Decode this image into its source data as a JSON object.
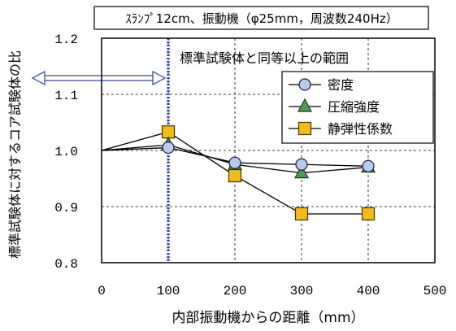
{
  "chart_data": {
    "type": "line",
    "title": "ｽﾗﾝﾌﾟ12cm、振動機（φ25mm，周波数240Hz）",
    "xlabel": "内部振動機からの距離（mm）",
    "ylabel": "標準試験体に対するコア試験体の比",
    "xlim": [
      0,
      500
    ],
    "ylim": [
      0.8,
      1.2
    ],
    "x_ticks": [
      "0",
      "100",
      "200",
      "300",
      "400",
      "500"
    ],
    "y_ticks": [
      "0.8",
      "0.9",
      "1.0",
      "1.1",
      "1.2"
    ],
    "x_tick_values": [
      0,
      100,
      200,
      300,
      400,
      500
    ],
    "y_tick_values": [
      0.8,
      0.9,
      1.0,
      1.1,
      1.2
    ],
    "grid": "dashed",
    "legend_position": "right",
    "reference_line": {
      "x": 100,
      "label": "標準試験体と同等以上の範囲",
      "color": "#3a48b8"
    },
    "series": [
      {
        "name": "密度",
        "marker": "circle",
        "color": "#b7cce8",
        "x": [
          0,
          100,
          200,
          300,
          400
        ],
        "y": [
          1.0,
          1.005,
          0.978,
          0.975,
          0.972
        ]
      },
      {
        "name": "圧縮強度",
        "marker": "triangle",
        "color": "#4e9a5a",
        "x": [
          0,
          100,
          200,
          300,
          400
        ],
        "y": [
          1.0,
          1.01,
          0.975,
          0.96,
          0.97
        ]
      },
      {
        "name": "静弾性係数",
        "marker": "square",
        "color": "#f0bc1e",
        "x": [
          0,
          100,
          200,
          300,
          400
        ],
        "y": [
          1.0,
          1.033,
          0.955,
          0.887,
          0.887
        ]
      }
    ]
  }
}
